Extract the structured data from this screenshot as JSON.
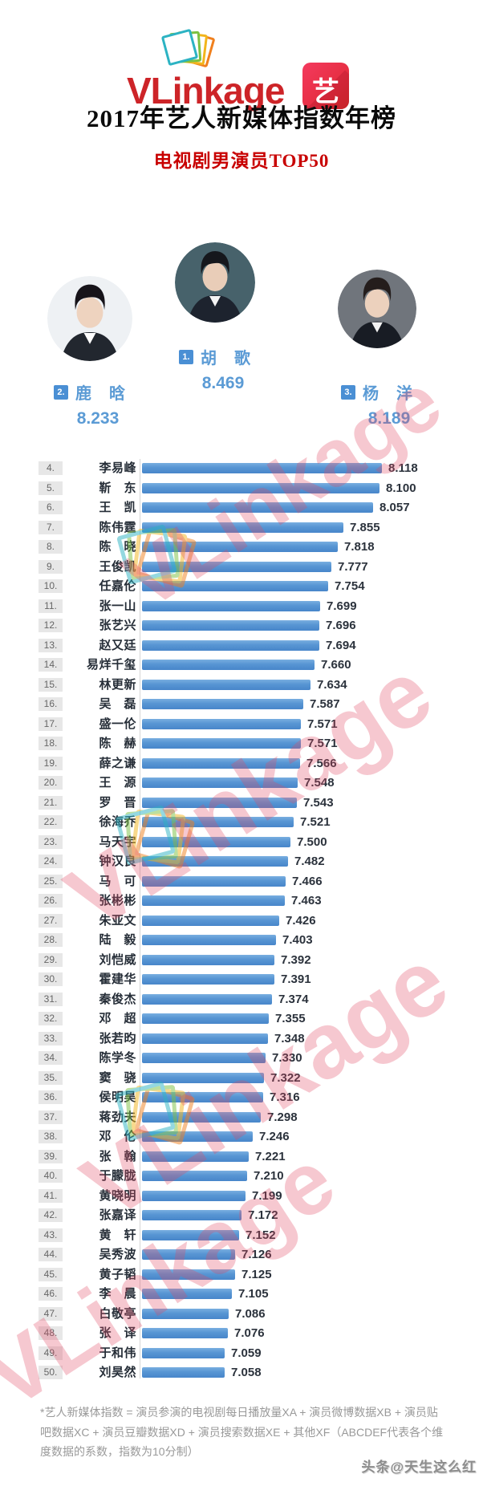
{
  "header": {
    "logo_text": "VLinkage",
    "logo_badge": "艺",
    "title": "2017年艺人新媒体指数年榜",
    "subtitle": "电视剧男演员TOP50",
    "brand_red": "#cd2428"
  },
  "top3": [
    {
      "rank": "1.",
      "name": "胡　歌",
      "score": "8.469"
    },
    {
      "rank": "2.",
      "name": "鹿　晗",
      "score": "8.233"
    },
    {
      "rank": "3.",
      "name": "杨　洋",
      "score": "8.189"
    }
  ],
  "chart_data": {
    "type": "bar",
    "orientation": "horizontal",
    "title": "2017年艺人新媒体指数年榜 电视剧男演员TOP50",
    "axis_min": 6.5,
    "axis_max": 8.5,
    "grid": false,
    "legend": false,
    "bar_color": "#4e8cce",
    "ranks": [
      "4.",
      "5.",
      "6.",
      "7.",
      "8.",
      "9.",
      "10.",
      "11.",
      "12.",
      "13.",
      "14.",
      "15.",
      "16.",
      "17.",
      "18.",
      "19.",
      "20.",
      "21.",
      "22.",
      "23.",
      "24.",
      "25.",
      "26.",
      "27.",
      "28.",
      "29.",
      "30.",
      "31.",
      "32.",
      "33.",
      "34.",
      "35.",
      "36.",
      "37.",
      "38.",
      "39.",
      "40.",
      "41.",
      "42.",
      "43.",
      "44.",
      "45.",
      "46.",
      "47.",
      "48.",
      "49.",
      "50."
    ],
    "categories": [
      "李易峰",
      "靳　东",
      "王　凯",
      "陈伟霆",
      "陈　晓",
      "王俊凯",
      "任嘉伦",
      "张一山",
      "张艺兴",
      "赵又廷",
      "易烊千玺",
      "林更新",
      "吴　磊",
      "盛一伦",
      "陈　赫",
      "薛之谦",
      "王　源",
      "罗　晋",
      "徐海乔",
      "马天宇",
      "钟汉良",
      "马　可",
      "张彬彬",
      "朱亚文",
      "陆　毅",
      "刘恺威",
      "霍建华",
      "秦俊杰",
      "邓　超",
      "张若昀",
      "陈学冬",
      "窦　骁",
      "侯明昊",
      "蒋劲夫",
      "邓　伦",
      "张　翰",
      "于朦胧",
      "黄晓明",
      "张嘉译",
      "黄　轩",
      "吴秀波",
      "黄子韬",
      "李　晨",
      "白敬亭",
      "张　译",
      "于和伟",
      "刘昊然"
    ],
    "values": [
      8.118,
      8.1,
      8.057,
      7.855,
      7.818,
      7.777,
      7.754,
      7.699,
      7.696,
      7.694,
      7.66,
      7.634,
      7.587,
      7.571,
      7.571,
      7.566,
      7.548,
      7.543,
      7.521,
      7.5,
      7.482,
      7.466,
      7.463,
      7.426,
      7.403,
      7.392,
      7.391,
      7.374,
      7.355,
      7.348,
      7.33,
      7.322,
      7.316,
      7.298,
      7.246,
      7.221,
      7.21,
      7.199,
      7.172,
      7.152,
      7.126,
      7.125,
      7.105,
      7.086,
      7.076,
      7.059,
      7.058
    ]
  },
  "watermark": {
    "text": "VLinkage",
    "color": "#e24862"
  },
  "footnote": {
    "text": "*艺人新媒体指数 = 演员参演的电视剧每日播放量XA + 演员微博数据XB + 演员贴吧数据XC + 演员豆瓣数据XD + 演员搜索数据XE + 其他XF（ABCDEF代表各个维度数据的系数，指数为10分制）"
  },
  "credit": "头条@天生这么红"
}
